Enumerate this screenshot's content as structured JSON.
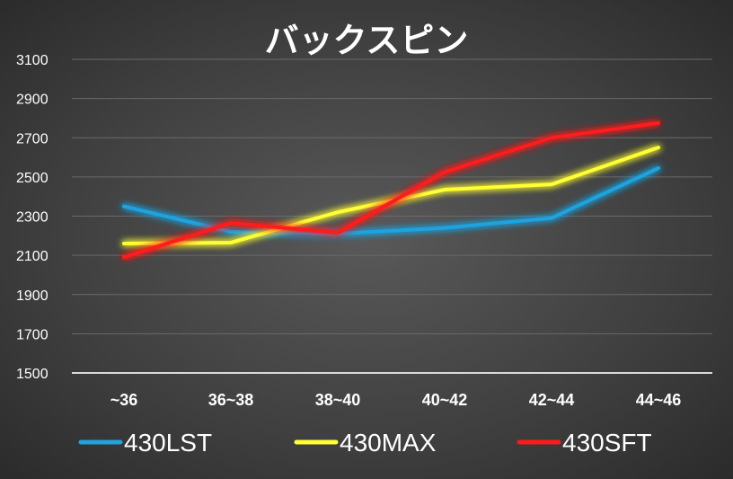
{
  "chart_data": {
    "type": "line",
    "title": "バックスピン",
    "categories": [
      "~36",
      "36~38",
      "38~40",
      "40~42",
      "42~44",
      "44~46"
    ],
    "ylim": [
      1500,
      3100
    ],
    "yticks": [
      1500,
      1700,
      1900,
      2100,
      2300,
      2500,
      2700,
      2900,
      3100
    ],
    "grid": true,
    "legend_position": "bottom",
    "series": [
      {
        "name": "430LST",
        "color": "#1fa3e0",
        "values": [
          2350,
          2220,
          2210,
          2240,
          2290,
          2545
        ]
      },
      {
        "name": "430MAX",
        "color": "#ffff33",
        "values": [
          2160,
          2165,
          2320,
          2435,
          2462,
          2650
        ]
      },
      {
        "name": "430SFT",
        "color": "#ff1a1a",
        "values": [
          2090,
          2265,
          2215,
          2525,
          2700,
          2775
        ]
      }
    ]
  }
}
